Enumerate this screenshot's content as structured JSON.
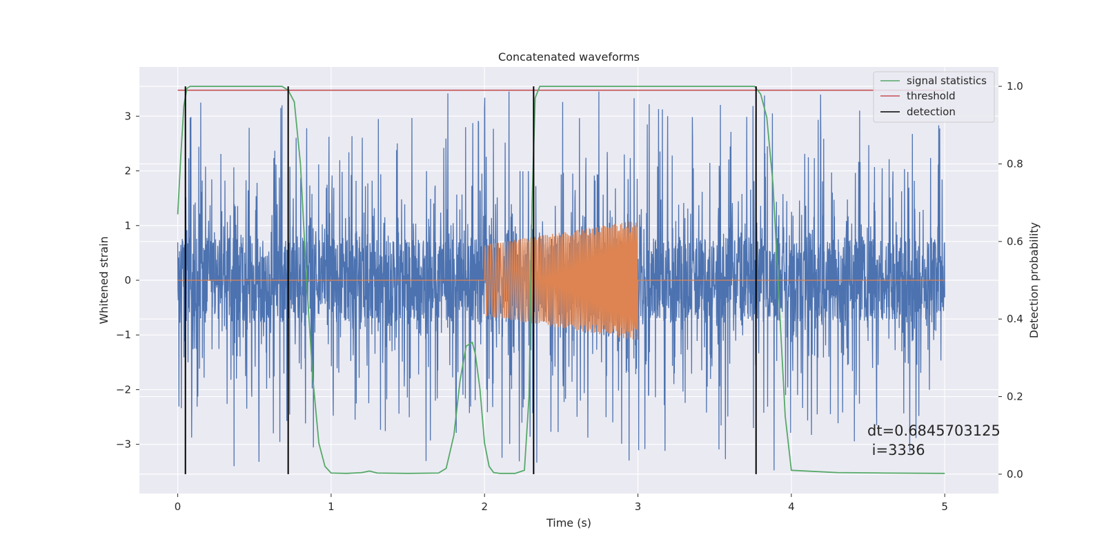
{
  "chart_data": {
    "type": "line",
    "title": "Concatenated waveforms",
    "xlabel": "Time (s)",
    "ylabel": "Whitened strain",
    "y2label": "Detection probability",
    "xlim": [
      -0.25,
      5.35
    ],
    "ylim": [
      -3.9,
      3.9
    ],
    "y2lim": [
      -0.05,
      1.05
    ],
    "x_ticks": [
      0,
      1,
      2,
      3,
      4,
      5
    ],
    "y_ticks": [
      -3,
      -2,
      -1,
      0,
      1,
      2,
      3
    ],
    "y2_ticks": [
      0.0,
      0.2,
      0.4,
      0.6,
      0.8,
      1.0
    ],
    "x_tick_labels": [
      "0",
      "1",
      "2",
      "3",
      "4",
      "5"
    ],
    "y_tick_labels": [
      "−3",
      "−2",
      "−1",
      "0",
      "1",
      "2",
      "3"
    ],
    "y2_tick_labels": [
      "0.0",
      "0.2",
      "0.4",
      "0.6",
      "0.8",
      "1.0"
    ],
    "grid": true,
    "legend_position": "top-right",
    "colors": {
      "noise": "#4c72b0",
      "injection": "#dd8452",
      "signal_statistics": "#55a868",
      "threshold": "#c44e52",
      "detection": "#000000",
      "plot_bg": "#eaeaf2",
      "grid": "#ffffff"
    },
    "series": [
      {
        "name": "signal statistics",
        "axis": "right",
        "color": "#55a868",
        "x": [
          0.0,
          0.02,
          0.04,
          0.06,
          0.08,
          0.1,
          0.2,
          0.4,
          0.6,
          0.68,
          0.72,
          0.76,
          0.8,
          0.84,
          0.88,
          0.92,
          0.96,
          1.0,
          1.1,
          1.2,
          1.25,
          1.3,
          1.5,
          1.7,
          1.75,
          1.8,
          1.84,
          1.88,
          1.92,
          1.94,
          1.97,
          2.0,
          2.03,
          2.06,
          2.1,
          2.2,
          2.26,
          2.29,
          2.31,
          2.33,
          2.36,
          2.5,
          3.0,
          3.5,
          3.7,
          3.76,
          3.8,
          3.84,
          3.88,
          3.92,
          3.96,
          4.0,
          4.3,
          4.6,
          5.0
        ],
        "y": [
          0.67,
          0.82,
          0.95,
          0.995,
          1.0,
          1.0,
          1.0,
          1.0,
          1.0,
          1.0,
          0.99,
          0.96,
          0.8,
          0.5,
          0.25,
          0.08,
          0.02,
          0.003,
          0.002,
          0.004,
          0.008,
          0.003,
          0.002,
          0.003,
          0.015,
          0.1,
          0.24,
          0.33,
          0.34,
          0.31,
          0.22,
          0.08,
          0.02,
          0.004,
          0.002,
          0.002,
          0.01,
          0.2,
          0.7,
          0.97,
          1.0,
          1.0,
          1.0,
          1.0,
          1.0,
          1.0,
          0.98,
          0.92,
          0.75,
          0.45,
          0.15,
          0.01,
          0.004,
          0.003,
          0.002
        ]
      },
      {
        "name": "threshold",
        "axis": "right",
        "color": "#c44e52",
        "x": [
          0.0,
          5.0
        ],
        "y": [
          0.99,
          0.99
        ]
      },
      {
        "name": "detection",
        "axis": "right",
        "color": "#000000",
        "x": [
          0.05,
          0.72,
          2.32,
          3.77
        ],
        "y_range": [
          0.0,
          1.0
        ]
      },
      {
        "name": "",
        "axis": "left",
        "color": "#4c72b0",
        "description_only": "whitened noise, x from 0 to 5 s, dense band about ±0.75 with spikes up to about 3.4"
      },
      {
        "name": "",
        "axis": "left",
        "color": "#dd8452",
        "x_range": [
          2.0,
          3.0
        ],
        "amplitude_range": [
          0.65,
          1.1
        ],
        "baseline": 0
      }
    ],
    "annotations": [
      "dt=0.6845703125",
      " i=3336"
    ]
  }
}
